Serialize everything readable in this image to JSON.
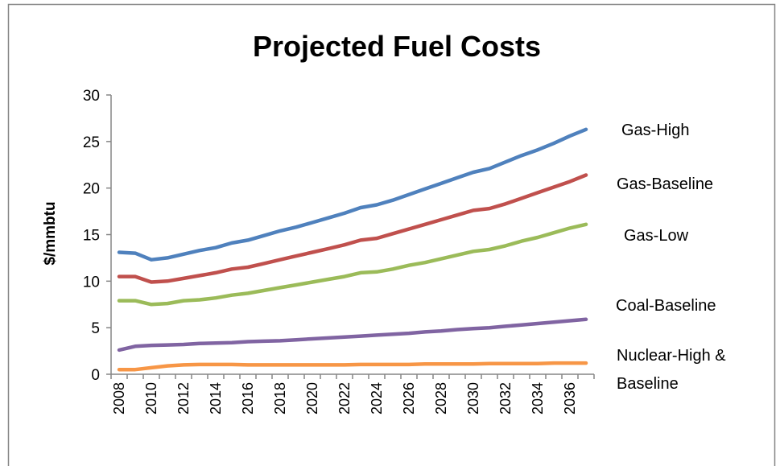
{
  "chart_data": {
    "type": "line",
    "title": "Projected Fuel Costs",
    "y_label": "$/mmbtu",
    "categories": [
      "2008",
      null,
      "2010",
      null,
      "2012",
      null,
      "2014",
      null,
      "2016",
      null,
      "2018",
      null,
      "2020",
      null,
      "2022",
      null,
      "2024",
      null,
      "2026",
      null,
      "2028",
      null,
      "2030",
      null,
      "2032",
      null,
      "2034",
      null,
      "2036",
      null
    ],
    "ylim": [
      0,
      30
    ],
    "yticks": [
      0,
      5,
      10,
      15,
      20,
      25,
      30
    ],
    "grid": false,
    "series": [
      {
        "name": "Gas-High",
        "color": "#4f81bd",
        "values": [
          13.1,
          13.0,
          12.3,
          12.5,
          12.9,
          13.3,
          13.6,
          14.1,
          14.4,
          14.9,
          15.4,
          15.8,
          16.3,
          16.8,
          17.3,
          17.9,
          18.2,
          18.7,
          19.3,
          19.9,
          20.5,
          21.1,
          21.7,
          22.1,
          22.8,
          23.5,
          24.1,
          24.8,
          25.6,
          26.3
        ]
      },
      {
        "name": "Gas-Baseline",
        "color": "#c0504d",
        "values": [
          10.5,
          10.5,
          9.9,
          10.0,
          10.3,
          10.6,
          10.9,
          11.3,
          11.5,
          11.9,
          12.3,
          12.7,
          13.1,
          13.5,
          13.9,
          14.4,
          14.6,
          15.1,
          15.6,
          16.1,
          16.6,
          17.1,
          17.6,
          17.8,
          18.3,
          18.9,
          19.5,
          20.1,
          20.7,
          21.4
        ]
      },
      {
        "name": "Gas-Low",
        "color": "#9bbb59",
        "values": [
          7.9,
          7.9,
          7.5,
          7.6,
          7.9,
          8.0,
          8.2,
          8.5,
          8.7,
          9.0,
          9.3,
          9.6,
          9.9,
          10.2,
          10.5,
          10.9,
          11.0,
          11.3,
          11.7,
          12.0,
          12.4,
          12.8,
          13.2,
          13.4,
          13.8,
          14.3,
          14.7,
          15.2,
          15.7,
          16.1
        ]
      },
      {
        "name": "Coal-Baseline",
        "color": "#8064a2",
        "values": [
          2.6,
          3.0,
          3.1,
          3.15,
          3.2,
          3.3,
          3.35,
          3.4,
          3.5,
          3.55,
          3.6,
          3.7,
          3.8,
          3.9,
          4.0,
          4.1,
          4.2,
          4.3,
          4.4,
          4.55,
          4.65,
          4.8,
          4.9,
          5.0,
          5.15,
          5.3,
          5.45,
          5.6,
          5.75,
          5.9
        ]
      },
      {
        "name": "Nuclear-High & Baseline",
        "color": "#f79646",
        "values": [
          0.5,
          0.5,
          0.7,
          0.9,
          1.0,
          1.05,
          1.05,
          1.05,
          1.0,
          1.0,
          1.0,
          1.0,
          1.0,
          1.0,
          1.0,
          1.05,
          1.05,
          1.05,
          1.05,
          1.1,
          1.1,
          1.1,
          1.1,
          1.15,
          1.15,
          1.15,
          1.15,
          1.2,
          1.2,
          1.2
        ]
      }
    ]
  }
}
